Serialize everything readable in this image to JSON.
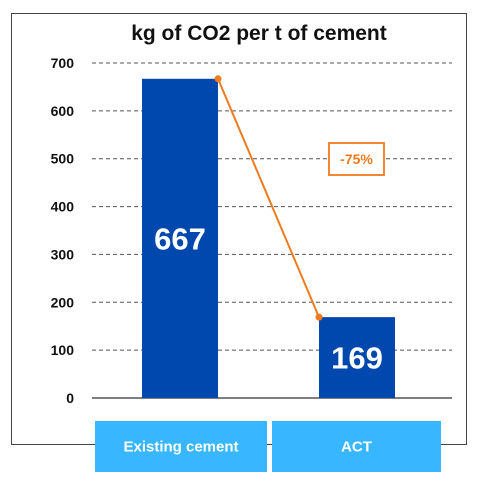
{
  "chart_data": {
    "type": "bar",
    "title": "kg of CO2 per t of cement",
    "categories": [
      "Existing cement",
      "ACT"
    ],
    "values": [
      667,
      169
    ],
    "value_labels": [
      "667",
      "169"
    ],
    "ylim": [
      0,
      700
    ],
    "yticks": [
      0,
      100,
      200,
      300,
      400,
      500,
      600,
      700
    ],
    "grid": true,
    "annotation": {
      "text": "-75%",
      "type": "change-line"
    }
  },
  "colors": {
    "bar": "#0048ad",
    "category_box": "#38b6ff",
    "annotation": "#f07b1f",
    "frame": "#444444"
  }
}
